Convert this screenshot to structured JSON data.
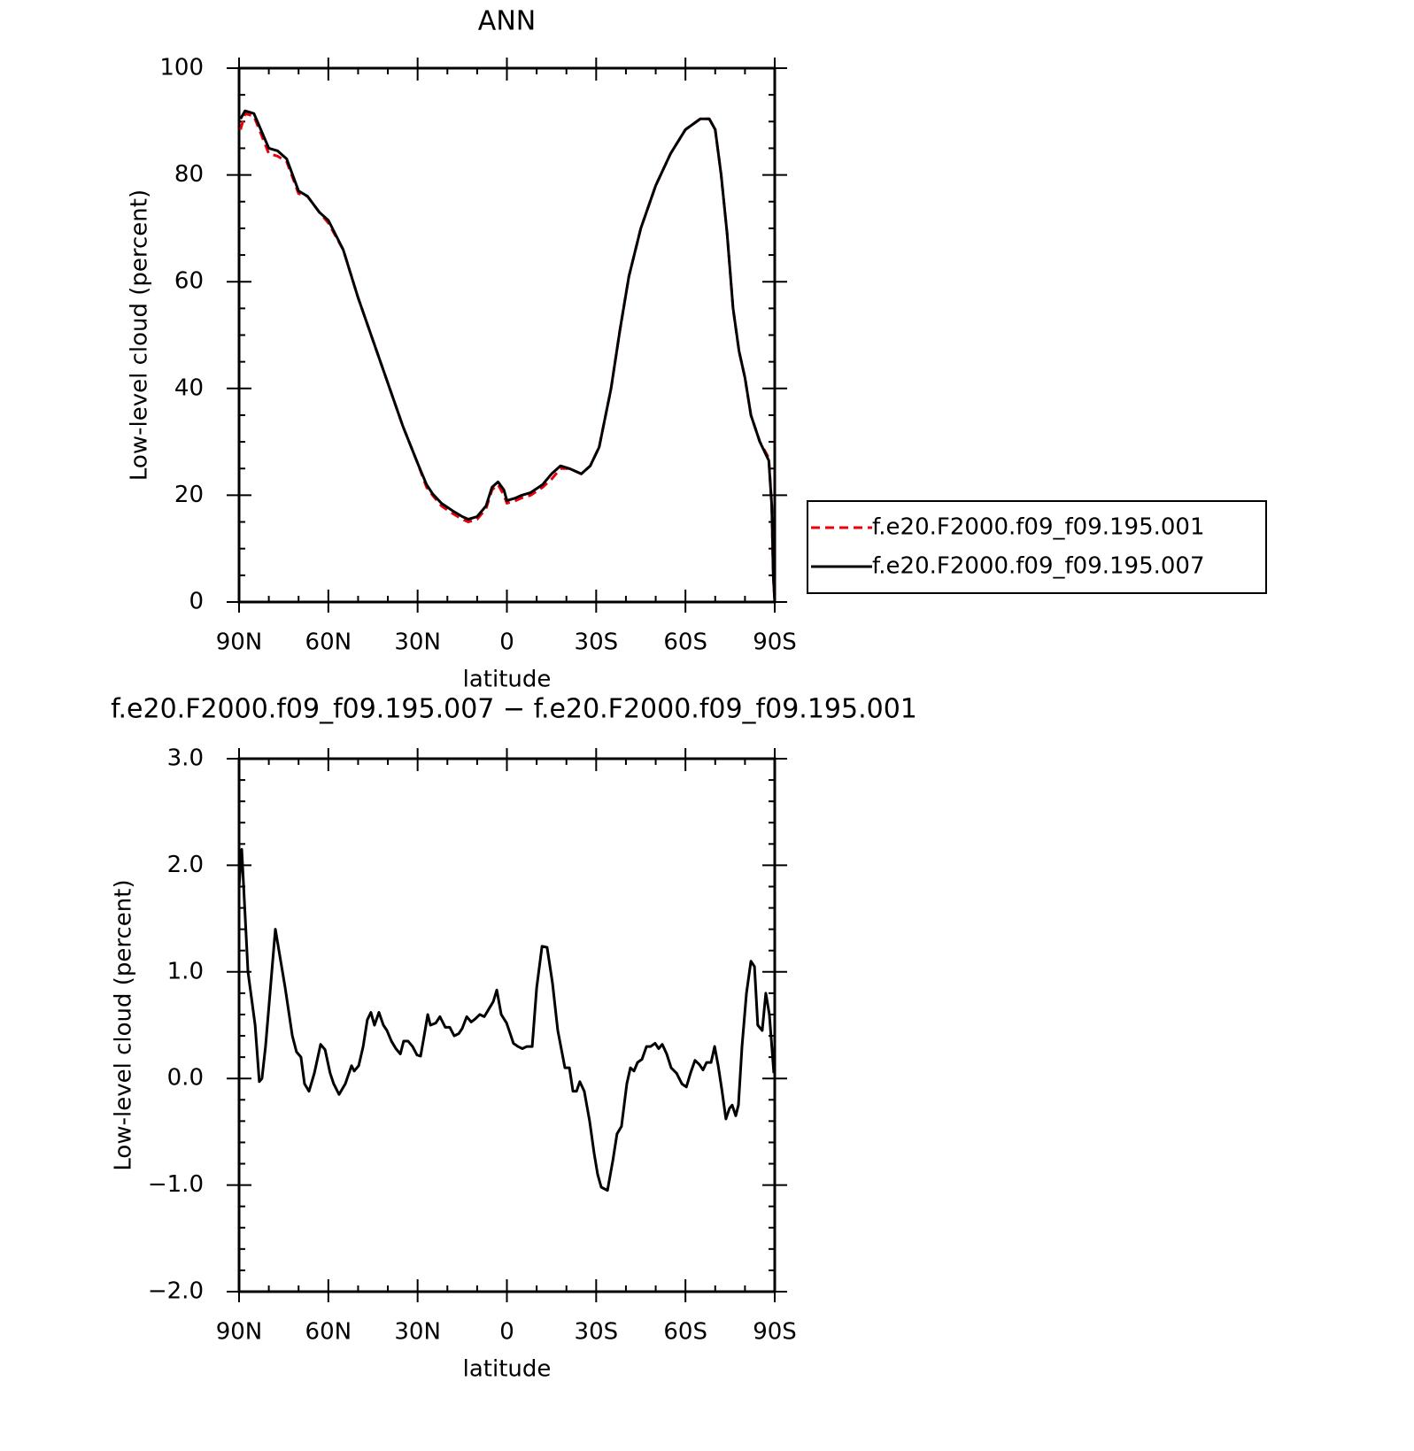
{
  "chart_data": [
    {
      "type": "line",
      "title": "ANN",
      "xlabel": "latitude",
      "ylabel": "Low-level cloud (percent)",
      "xlim": [
        90,
        -90
      ],
      "xticks": [
        {
          "value": 90,
          "label": "90N"
        },
        {
          "value": 60,
          "label": "60N"
        },
        {
          "value": 30,
          "label": "30N"
        },
        0,
        {
          "value": -30,
          "label": "30S"
        },
        {
          "value": -60,
          "label": "60S"
        },
        {
          "value": -90,
          "label": "90S"
        }
      ],
      "xminorticks": [
        80,
        70,
        50,
        40,
        20,
        10,
        -10,
        -20,
        -40,
        -50,
        -70,
        -80
      ],
      "ylim": [
        0,
        100
      ],
      "yticks": [
        0,
        20,
        40,
        60,
        80,
        100
      ],
      "yminorticks": [
        5,
        10,
        15,
        25,
        30,
        35,
        45,
        50,
        55,
        65,
        70,
        75,
        85,
        90,
        95
      ],
      "legend": "right",
      "x": [
        89.5,
        88,
        85,
        80,
        77,
        74,
        70,
        67,
        63,
        60,
        55,
        50,
        45,
        40,
        35,
        30,
        27,
        25,
        22,
        18,
        15,
        13,
        10,
        7,
        5,
        3,
        1,
        0,
        -3,
        -5,
        -8,
        -12,
        -15,
        -18,
        -21,
        -25,
        -28,
        -31,
        -35,
        -38,
        -41,
        -45,
        -50,
        -55,
        -60,
        -65,
        -68,
        -70,
        -72,
        -74,
        -76,
        -78,
        -80,
        -82,
        -85,
        -88,
        -89,
        -89.5,
        -90
      ],
      "series": [
        {
          "name": "f.e20.F2000.f09_f09.195.001",
          "color": "#e8000b",
          "style": "dashed",
          "values": [
            88.5,
            91.5,
            91,
            84,
            83.5,
            82.5,
            76.5,
            76,
            73,
            71,
            66,
            57,
            49,
            41,
            33,
            26,
            21.5,
            20,
            18,
            16.5,
            15.5,
            15,
            15.5,
            17.5,
            21,
            22,
            20,
            18.5,
            19,
            19.5,
            20,
            21.5,
            23,
            25,
            25,
            24,
            25.5,
            29,
            40,
            51,
            61,
            70,
            78,
            84,
            88.5,
            90.5,
            90.5,
            88.5,
            80,
            69,
            55,
            47,
            42,
            35,
            30,
            27,
            18,
            5,
            0
          ]
        },
        {
          "name": "f.e20.F2000.f09_f09.195.007",
          "color": "#000000",
          "style": "solid",
          "values": [
            90.5,
            92,
            91.5,
            85,
            84.5,
            83,
            77,
            76,
            73,
            71.5,
            66,
            57,
            49,
            41,
            33,
            26,
            22,
            20.3,
            18.5,
            17,
            16,
            15.5,
            16,
            18,
            21.5,
            22.5,
            21,
            19,
            19.5,
            20,
            20.5,
            22,
            24,
            25.5,
            25,
            24,
            25.5,
            29,
            40,
            51,
            61,
            70,
            78,
            84,
            88.5,
            90.5,
            90.5,
            88.5,
            80,
            69,
            55,
            47,
            42,
            35,
            30,
            26.5,
            18,
            5,
            0
          ]
        }
      ]
    },
    {
      "type": "line",
      "title": "f.e20.F2000.f09_f09.195.007 − f.e20.F2000.f09_f09.195.001",
      "xlabel": "latitude",
      "ylabel": "Low-level cloud (percent)",
      "xlim": [
        90,
        -90
      ],
      "xticks": [
        {
          "value": 90,
          "label": "90N"
        },
        {
          "value": 60,
          "label": "60N"
        },
        {
          "value": 30,
          "label": "30N"
        },
        0,
        {
          "value": -30,
          "label": "30S"
        },
        {
          "value": -60,
          "label": "60S"
        },
        {
          "value": -90,
          "label": "90S"
        }
      ],
      "xminorticks": [
        80,
        70,
        50,
        40,
        20,
        10,
        -10,
        -20,
        -40,
        -50,
        -70,
        -80
      ],
      "ylim": [
        -2,
        3
      ],
      "yticks": [
        {
          "value": -2,
          "label": "−2.0"
        },
        {
          "value": -1,
          "label": "−1.0"
        },
        {
          "value": 0,
          "label": "0.0"
        },
        {
          "value": 1,
          "label": "1.0"
        },
        {
          "value": 2,
          "label": "2.0"
        },
        {
          "value": 3,
          "label": "3.0"
        }
      ],
      "yminorticks": [
        -1.8,
        -1.6,
        -1.4,
        -1.2,
        -0.8,
        -0.6,
        -0.4,
        -0.2,
        0.2,
        0.4,
        0.6,
        0.8,
        1.2,
        1.4,
        1.6,
        1.8,
        2.2,
        2.4,
        2.6,
        2.8
      ],
      "x": [
        90,
        89.1,
        87,
        84.6,
        83.2,
        82.3,
        81.1,
        79.6,
        77.8,
        76,
        74.5,
        72.1,
        70.7,
        69.2,
        68,
        66.5,
        64.7,
        62.6,
        61.1,
        59.4,
        58.2,
        56.4,
        54.3,
        52.2,
        51.3,
        49.8,
        48.3,
        46.9,
        45.7,
        44.5,
        43,
        41.5,
        40.3,
        38.8,
        37.3,
        35.8,
        34.7,
        33.2,
        31.7,
        30.2,
        29,
        27.8,
        26.6,
        25.7,
        23.9,
        22.5,
        20.7,
        19.2,
        17.7,
        16.2,
        15,
        13.5,
        12,
        10.6,
        9.1,
        7.6,
        6.1,
        4.6,
        3.4,
        1.9,
        0.1,
        -1,
        -2.2,
        -3.7,
        -5.2,
        -6.7,
        -8.5,
        -10,
        -11.8,
        -13.5,
        -15.3,
        -17.1,
        -19.5,
        -21,
        -22.2,
        -23.4,
        -24.5,
        -26,
        -27.8,
        -29.3,
        -30.5,
        -31.7,
        -33.8,
        -35.6,
        -37,
        -38.5,
        -40.3,
        -41.5,
        -42.7,
        -43.9,
        -45.4,
        -46.9,
        -48.3,
        -49.8,
        -51,
        -52.2,
        -53.7,
        -55.2,
        -57,
        -58.8,
        -60.3,
        -61.7,
        -63.2,
        -64.7,
        -65.9,
        -67.1,
        -68.6,
        -69.8,
        -71,
        -72.2,
        -73.6,
        -74.8,
        -75.7,
        -76.9,
        -77.8,
        -79,
        -80.5,
        -82,
        -83.2,
        -84.3,
        -85.8,
        -87,
        -88.2,
        -89.7
      ],
      "series": [
        {
          "color": "#000000",
          "style": "solid",
          "values": [
            1.8,
            2.15,
            1.0,
            0.5,
            -0.03,
            0.0,
            0.3,
            0.8,
            1.4,
            1.1,
            0.85,
            0.4,
            0.25,
            0.2,
            -0.05,
            -0.12,
            0.05,
            0.32,
            0.27,
            0.05,
            -0.05,
            -0.15,
            -0.05,
            0.12,
            0.07,
            0.12,
            0.3,
            0.55,
            0.62,
            0.5,
            0.62,
            0.5,
            0.45,
            0.35,
            0.28,
            0.23,
            0.35,
            0.35,
            0.3,
            0.22,
            0.21,
            0.4,
            0.6,
            0.5,
            0.52,
            0.58,
            0.48,
            0.48,
            0.4,
            0.42,
            0.47,
            0.58,
            0.53,
            0.56,
            0.6,
            0.58,
            0.65,
            0.72,
            0.83,
            0.6,
            0.52,
            0.43,
            0.33,
            0.3,
            0.28,
            0.3,
            0.3,
            0.85,
            1.24,
            1.23,
            0.9,
            0.45,
            0.1,
            0.1,
            -0.12,
            -0.12,
            -0.03,
            -0.12,
            -0.4,
            -0.7,
            -0.9,
            -1.02,
            -1.05,
            -0.77,
            -0.52,
            -0.45,
            -0.05,
            0.1,
            0.07,
            0.15,
            0.18,
            0.3,
            0.3,
            0.33,
            0.28,
            0.32,
            0.23,
            0.1,
            0.05,
            -0.05,
            -0.08,
            0.05,
            0.17,
            0.13,
            0.08,
            0.15,
            0.15,
            0.3,
            0.12,
            -0.1,
            -0.38,
            -0.28,
            -0.25,
            -0.35,
            -0.25,
            0.3,
            0.8,
            1.1,
            1.05,
            0.5,
            0.45,
            0.8,
            0.6,
            0.05
          ]
        }
      ]
    }
  ]
}
